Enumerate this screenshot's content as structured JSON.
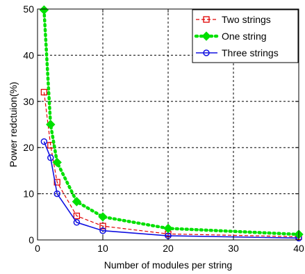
{
  "chart_data": {
    "type": "line",
    "title": "",
    "xlabel": "Number of modules per string",
    "ylabel": "Power redctuion(%)",
    "xlim": [
      0,
      40
    ],
    "ylim": [
      0,
      50
    ],
    "xticks": [
      0,
      10,
      20,
      30,
      40
    ],
    "yticks": [
      0,
      10,
      20,
      30,
      40,
      50
    ],
    "xtick_labels": [
      "0",
      "10",
      "20",
      "30",
      "40"
    ],
    "ytick_labels": [
      "0",
      "10",
      "20",
      "30",
      "40",
      "50"
    ],
    "grid": true,
    "legend_position": "top-right",
    "series": [
      {
        "name": "Two strings",
        "color": "#e00000",
        "line_style": "dashed",
        "marker": "square",
        "x": [
          1,
          2,
          3,
          6,
          10,
          20,
          40
        ],
        "values": [
          32,
          20.5,
          12.5,
          5.2,
          3,
          1.3,
          0.7
        ]
      },
      {
        "name": "One string",
        "color": "#00e000",
        "line_style": "dotted",
        "marker": "diamond",
        "x": [
          1,
          2,
          3,
          6,
          10,
          20,
          40
        ],
        "values": [
          49.8,
          25,
          16.8,
          8.3,
          5,
          2.5,
          1.2
        ]
      },
      {
        "name": "Three strings",
        "color": "#1010e0",
        "line_style": "solid",
        "marker": "circle",
        "x": [
          1,
          2,
          3,
          6,
          10,
          20,
          40
        ],
        "values": [
          21.3,
          17.8,
          10,
          3.8,
          2,
          0.9,
          0.4
        ]
      }
    ]
  }
}
